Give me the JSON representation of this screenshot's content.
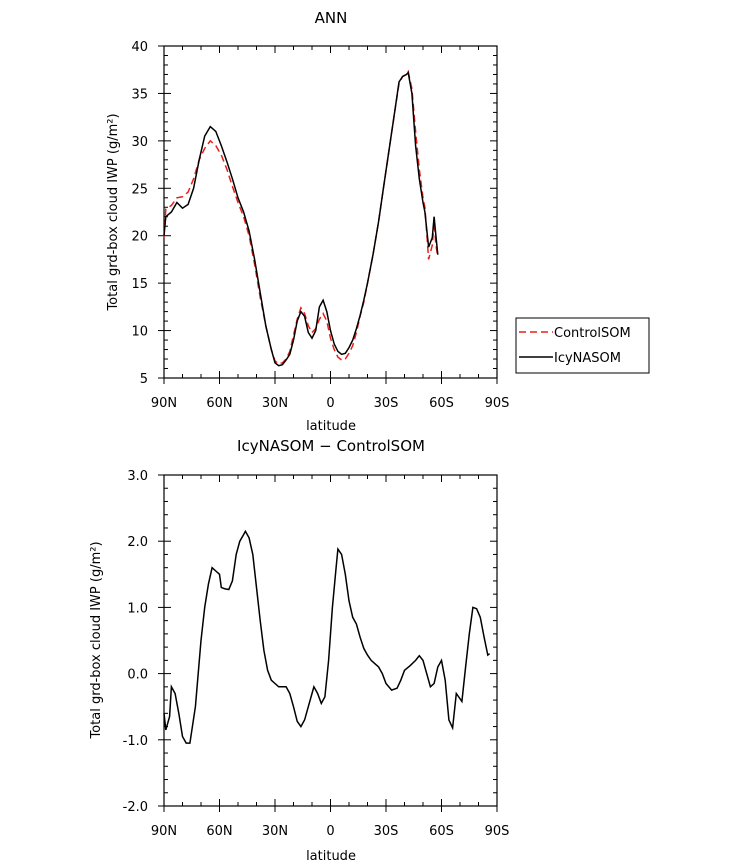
{
  "chart_data": [
    {
      "type": "line",
      "title": "ANN",
      "xlabel": "latitude",
      "ylabel": "Total grd-box cloud IWP (g/m²)",
      "xlim": [
        90,
        -90
      ],
      "ylim": [
        5,
        40
      ],
      "xticks": [
        {
          "value": 90,
          "label": "90N"
        },
        {
          "value": 60,
          "label": "60N"
        },
        {
          "value": 30,
          "label": "30N"
        },
        {
          "value": 0,
          "label": "0"
        },
        {
          "value": -30,
          "label": "30S"
        },
        {
          "value": -60,
          "label": "60S"
        },
        {
          "value": -90,
          "label": "90S"
        }
      ],
      "yticks": [
        5,
        10,
        15,
        20,
        25,
        30,
        35,
        40
      ],
      "legend": {
        "placement": "right",
        "entries": [
          "ControlSOM",
          "IcyNASOM"
        ]
      },
      "series": [
        {
          "name": "ControlSOM",
          "color": "#e8201a",
          "dash": "dashed",
          "points": [
            [
              90,
              19.8
            ],
            [
              89,
              22.8
            ],
            [
              86,
              23.2
            ],
            [
              83,
              24.0
            ],
            [
              80,
              24.1
            ],
            [
              77,
              24.6
            ],
            [
              74,
              26.0
            ],
            [
              71,
              28.0
            ],
            [
              68,
              29.2
            ],
            [
              65,
              30.0
            ],
            [
              62,
              29.5
            ],
            [
              59,
              28.5
            ],
            [
              56,
              27.0
            ],
            [
              53,
              25.2
            ],
            [
              50,
              23.5
            ],
            [
              47,
              22.0
            ],
            [
              44,
              20.0
            ],
            [
              41,
              17.0
            ],
            [
              38,
              13.5
            ],
            [
              35,
              10.5
            ],
            [
              32,
              8.0
            ],
            [
              30,
              6.8
            ],
            [
              28,
              6.5
            ],
            [
              26,
              6.6
            ],
            [
              24,
              7.0
            ],
            [
              22,
              7.8
            ],
            [
              20,
              9.5
            ],
            [
              18,
              11.2
            ],
            [
              16,
              12.4
            ],
            [
              14,
              11.8
            ],
            [
              12,
              10.5
            ],
            [
              10,
              9.8
            ],
            [
              8,
              10.2
            ],
            [
              6,
              11.2
            ],
            [
              4,
              11.8
            ],
            [
              2,
              11.0
            ],
            [
              0,
              9.2
            ],
            [
              -2,
              8.0
            ],
            [
              -4,
              7.2
            ],
            [
              -6,
              6.9
            ],
            [
              -8,
              7.0
            ],
            [
              -10,
              7.6
            ],
            [
              -12,
              8.4
            ],
            [
              -14,
              9.8
            ],
            [
              -16,
              11.5
            ],
            [
              -18,
              13.0
            ],
            [
              -20,
              15.0
            ],
            [
              -23,
              18.0
            ],
            [
              -26,
              21.5
            ],
            [
              -29,
              25.5
            ],
            [
              -32,
              29.5
            ],
            [
              -35,
              33.5
            ],
            [
              -37,
              36.0
            ],
            [
              -39,
              36.8
            ],
            [
              -41,
              37.0
            ],
            [
              -42,
              37.3
            ],
            [
              -44,
              35.5
            ],
            [
              -46,
              31.0
            ],
            [
              -48,
              27.0
            ],
            [
              -50,
              24.0
            ],
            [
              -51,
              23.0
            ],
            [
              -53,
              17.5
            ],
            [
              -55,
              19.0
            ],
            [
              -56,
              21.5
            ],
            [
              -57,
              19.0
            ],
            [
              -58,
              17.8
            ]
          ]
        },
        {
          "name": "IcyNASOM",
          "color": "#000000",
          "dash": "solid",
          "points": [
            [
              90,
              20.0
            ],
            [
              89,
              22.0
            ],
            [
              86,
              22.5
            ],
            [
              83,
              23.5
            ],
            [
              80,
              22.9
            ],
            [
              77,
              23.3
            ],
            [
              74,
              25.0
            ],
            [
              71,
              28.0
            ],
            [
              68,
              30.5
            ],
            [
              65,
              31.5
            ],
            [
              62,
              31.0
            ],
            [
              59,
              29.5
            ],
            [
              56,
              27.8
            ],
            [
              53,
              26.0
            ],
            [
              50,
              24.0
            ],
            [
              47,
              22.5
            ],
            [
              44,
              20.5
            ],
            [
              41,
              17.5
            ],
            [
              38,
              14.0
            ],
            [
              35,
              10.5
            ],
            [
              32,
              8.0
            ],
            [
              30,
              6.6
            ],
            [
              28,
              6.3
            ],
            [
              26,
              6.4
            ],
            [
              24,
              6.9
            ],
            [
              22,
              7.5
            ],
            [
              20,
              9.0
            ],
            [
              18,
              11.0
            ],
            [
              16,
              12.0
            ],
            [
              14,
              11.5
            ],
            [
              12,
              9.8
            ],
            [
              10,
              9.2
            ],
            [
              8,
              10.0
            ],
            [
              6,
              12.5
            ],
            [
              4,
              13.2
            ],
            [
              2,
              12.0
            ],
            [
              0,
              10.0
            ],
            [
              -2,
              8.6
            ],
            [
              -4,
              7.8
            ],
            [
              -6,
              7.5
            ],
            [
              -8,
              7.6
            ],
            [
              -10,
              8.2
            ],
            [
              -12,
              9.0
            ],
            [
              -14,
              10.2
            ],
            [
              -16,
              11.6
            ],
            [
              -18,
              13.2
            ],
            [
              -20,
              15.0
            ],
            [
              -23,
              18.0
            ],
            [
              -26,
              21.5
            ],
            [
              -29,
              25.5
            ],
            [
              -32,
              29.5
            ],
            [
              -35,
              33.5
            ],
            [
              -37,
              36.2
            ],
            [
              -39,
              36.8
            ],
            [
              -41,
              37.0
            ],
            [
              -42,
              37.2
            ],
            [
              -44,
              35.0
            ],
            [
              -46,
              29.5
            ],
            [
              -48,
              26.0
            ],
            [
              -50,
              23.5
            ],
            [
              -51,
              22.5
            ],
            [
              -53,
              18.8
            ],
            [
              -55,
              19.8
            ],
            [
              -56,
              22.0
            ],
            [
              -57,
              20.0
            ],
            [
              -58,
              18.0
            ]
          ]
        }
      ]
    },
    {
      "type": "line",
      "title": "IcyNASOM − ControlSOM",
      "xlabel": "latitude",
      "ylabel": "Total grd-box cloud IWP (g/m²)",
      "xlim": [
        90,
        -90
      ],
      "ylim": [
        -2.0,
        3.0
      ],
      "xticks": [
        {
          "value": 90,
          "label": "90N"
        },
        {
          "value": 60,
          "label": "60N"
        },
        {
          "value": 30,
          "label": "30N"
        },
        {
          "value": 0,
          "label": "0"
        },
        {
          "value": -30,
          "label": "30S"
        },
        {
          "value": -60,
          "label": "60S"
        },
        {
          "value": -90,
          "label": "90S"
        }
      ],
      "yticks": [
        "-2.0",
        "-1.0",
        "0.0",
        "1.0",
        "2.0",
        "3.0"
      ],
      "series": [
        {
          "color": "#000000",
          "dash": "solid",
          "points": [
            [
              90,
              -0.6
            ],
            [
              89,
              -0.85
            ],
            [
              87,
              -0.65
            ],
            [
              86,
              -0.2
            ],
            [
              84,
              -0.3
            ],
            [
              82,
              -0.6
            ],
            [
              80,
              -0.95
            ],
            [
              78,
              -1.05
            ],
            [
              76,
              -1.05
            ],
            [
              73,
              -0.5
            ],
            [
              70,
              0.5
            ],
            [
              68,
              1.0
            ],
            [
              66,
              1.35
            ],
            [
              64,
              1.6
            ],
            [
              62,
              1.55
            ],
            [
              60,
              1.5
            ],
            [
              59,
              1.3
            ],
            [
              57,
              1.28
            ],
            [
              55,
              1.27
            ],
            [
              53,
              1.4
            ],
            [
              51,
              1.8
            ],
            [
              49,
              2.0
            ],
            [
              47,
              2.1
            ],
            [
              46,
              2.15
            ],
            [
              44,
              2.05
            ],
            [
              42,
              1.8
            ],
            [
              40,
              1.3
            ],
            [
              38,
              0.8
            ],
            [
              36,
              0.35
            ],
            [
              34,
              0.05
            ],
            [
              32,
              -0.1
            ],
            [
              30,
              -0.15
            ],
            [
              28,
              -0.2
            ],
            [
              24,
              -0.2
            ],
            [
              22,
              -0.3
            ],
            [
              20,
              -0.5
            ],
            [
              18,
              -0.72
            ],
            [
              16,
              -0.8
            ],
            [
              14,
              -0.7
            ],
            [
              12,
              -0.5
            ],
            [
              10,
              -0.3
            ],
            [
              9,
              -0.2
            ],
            [
              7,
              -0.3
            ],
            [
              5,
              -0.45
            ],
            [
              3,
              -0.35
            ],
            [
              1,
              0.2
            ],
            [
              -1,
              1.0
            ],
            [
              -3,
              1.6
            ],
            [
              -4,
              1.88
            ],
            [
              -6,
              1.8
            ],
            [
              -8,
              1.5
            ],
            [
              -10,
              1.1
            ],
            [
              -12,
              0.85
            ],
            [
              -14,
              0.75
            ],
            [
              -16,
              0.55
            ],
            [
              -18,
              0.38
            ],
            [
              -20,
              0.28
            ],
            [
              -22,
              0.2
            ],
            [
              -24,
              0.15
            ],
            [
              -26,
              0.1
            ],
            [
              -28,
              0.0
            ],
            [
              -30,
              -0.15
            ],
            [
              -33,
              -0.25
            ],
            [
              -36,
              -0.22
            ],
            [
              -38,
              -0.1
            ],
            [
              -40,
              0.05
            ],
            [
              -43,
              0.12
            ],
            [
              -46,
              0.2
            ],
            [
              -48,
              0.27
            ],
            [
              -50,
              0.2
            ],
            [
              -52,
              0.0
            ],
            [
              -54,
              -0.2
            ],
            [
              -56,
              -0.15
            ],
            [
              -58,
              0.1
            ],
            [
              -60,
              0.2
            ],
            [
              -62,
              -0.1
            ],
            [
              -64,
              -0.7
            ],
            [
              -66,
              -0.82
            ],
            [
              -68,
              -0.3
            ],
            [
              -71,
              -0.42
            ],
            [
              -73,
              0.1
            ],
            [
              -75,
              0.6
            ],
            [
              -77,
              1.0
            ],
            [
              -79,
              0.98
            ],
            [
              -81,
              0.85
            ],
            [
              -83,
              0.55
            ],
            [
              -85,
              0.28
            ],
            [
              -86,
              0.3
            ]
          ]
        }
      ]
    }
  ]
}
